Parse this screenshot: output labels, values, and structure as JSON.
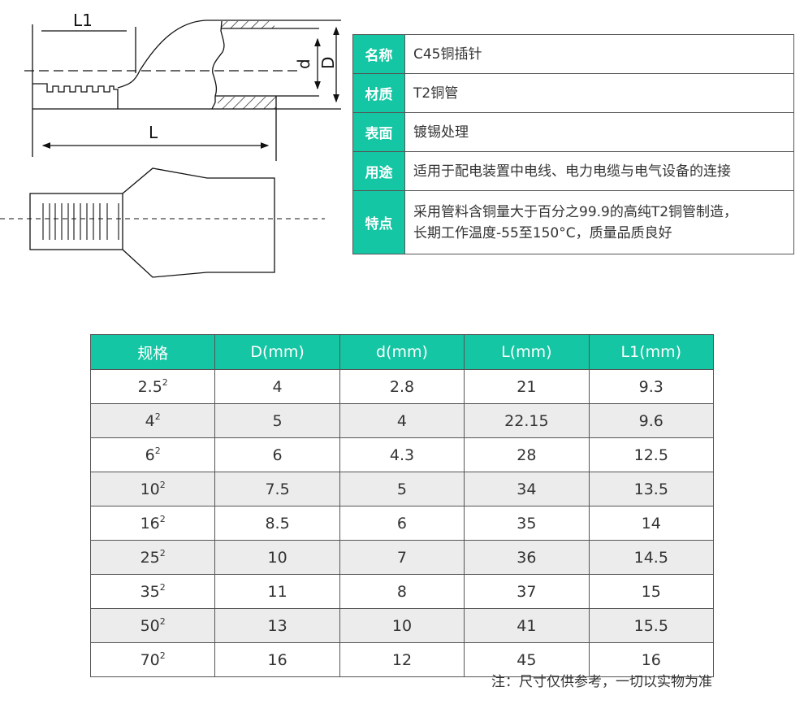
{
  "diagram": {
    "labels": {
      "l1": "L1",
      "l": "L",
      "d_small": "d",
      "d_large": "D"
    }
  },
  "spec": {
    "accent_color": "#14c6a3",
    "rows": [
      {
        "key": "名称",
        "value": "C45铜插针"
      },
      {
        "key": "材质",
        "value": "T2铜管"
      },
      {
        "key": "表面",
        "value": "镀锡处理"
      },
      {
        "key": "用途",
        "value": "适用于配电装置中电线、电力电缆与电气设备的连接"
      },
      {
        "key": "特点",
        "value": "采用管料含铜量大于百分之99.9的高纯T2铜管制造，",
        "value2": "长期工作温度-55至150°C，质量品质良好"
      }
    ]
  },
  "sizes": {
    "headers": [
      "规格",
      "D(mm)",
      "d(mm)",
      "L(mm)",
      "L1(mm)"
    ],
    "sup": "2",
    "rows": [
      [
        "2.5",
        "4",
        "2.8",
        "21",
        "9.3"
      ],
      [
        "4",
        "5",
        "4",
        "22.15",
        "9.6"
      ],
      [
        "6",
        "6",
        "4.3",
        "28",
        "12.5"
      ],
      [
        "10",
        "7.5",
        "5",
        "34",
        "13.5"
      ],
      [
        "16",
        "8.5",
        "6",
        "35",
        "14"
      ],
      [
        "25",
        "10",
        "7",
        "36",
        "14.5"
      ],
      [
        "35",
        "11",
        "8",
        "37",
        "15"
      ],
      [
        "50",
        "13",
        "10",
        "41",
        "15.5"
      ],
      [
        "70",
        "16",
        "12",
        "45",
        "16"
      ]
    ]
  },
  "note": "注：尺寸仅供参考，一切以实物为准"
}
